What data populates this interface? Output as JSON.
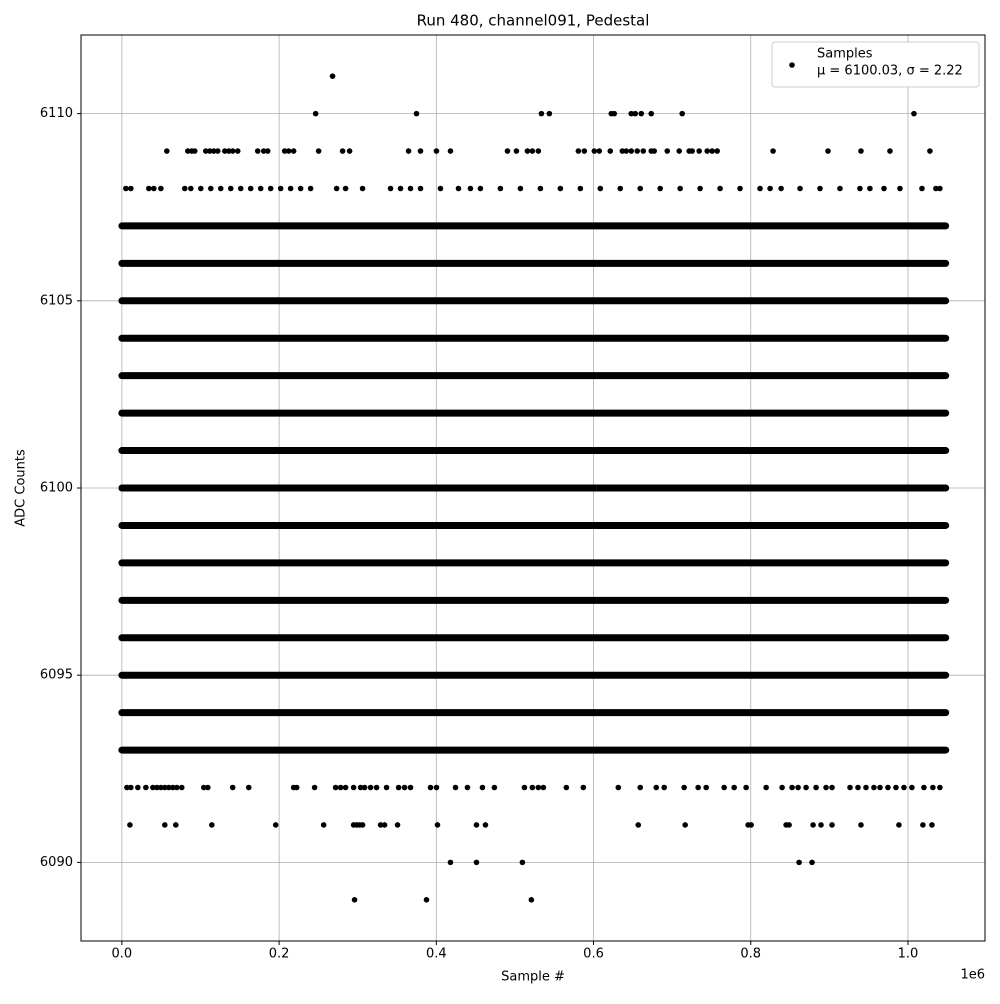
{
  "chart_data": {
    "type": "scatter",
    "title": "Run 480, channel091, Pedestal",
    "xlabel": "Sample #",
    "ylabel": "ADC Counts",
    "x_offset_label": "1e6",
    "legend": [
      "Samples",
      "μ = 6100.03, σ = 2.22"
    ],
    "color": "#000000",
    "grid": true,
    "legend_loc": "upper right",
    "xlim": [
      -52000,
      1098000
    ],
    "ylim": [
      6087.9,
      6112.1
    ],
    "xticks": [
      {
        "value": 0,
        "label": "0.0"
      },
      {
        "value": 200000,
        "label": "0.2"
      },
      {
        "value": 400000,
        "label": "0.4"
      },
      {
        "value": 600000,
        "label": "0.6"
      },
      {
        "value": 800000,
        "label": "0.8"
      },
      {
        "value": 1000000,
        "label": "1.0"
      }
    ],
    "yticks": [
      6090,
      6095,
      6100,
      6105,
      6110
    ],
    "band_levels": [
      6093,
      6094,
      6095,
      6096,
      6097,
      6098,
      6099,
      6100,
      6101,
      6102,
      6103,
      6104,
      6105,
      6106,
      6107
    ],
    "band_xlim": [
      0,
      1048000
    ],
    "points": [
      {
        "y": 6111,
        "x": [
          268000
        ]
      },
      {
        "y": 6110,
        "x": [
          246500,
          374800,
          533700,
          543800,
          622600,
          626400,
          648000,
          653100,
          660700,
          673400,
          712800,
          1007600
        ]
      },
      {
        "y": 6109,
        "x": [
          57200,
          83900,
          88900,
          92700,
          106700,
          111800,
          116900,
          122000,
          130900,
          136000,
          141000,
          147400,
          172800,
          180400,
          185500,
          207100,
          212200,
          218500,
          250300,
          280800,
          289700,
          364700,
          379900,
          400200,
          418000,
          490500,
          501900,
          515900,
          522200,
          529800,
          580700,
          588300,
          601000,
          607300,
          621300,
          636600,
          641600,
          648000,
          655600,
          663300,
          673400,
          677200,
          693800,
          709000,
          721700,
          725500,
          734400,
          744600,
          750900,
          757300,
          828400,
          898300,
          940200,
          977100,
          1027900
        ]
      },
      {
        "y": 6108,
        "x": [
          5100,
          11400,
          34300,
          40700,
          49600,
          80000,
          87700,
          100400,
          113100,
          125800,
          138500,
          151200,
          163900,
          176600,
          189300,
          202000,
          214700,
          227400,
          240100,
          273200,
          284600,
          306200,
          341800,
          354500,
          367200,
          379900,
          405300,
          428200,
          443400,
          456100,
          481500,
          507000,
          532400,
          557800,
          583200,
          608600,
          634000,
          659400,
          684800,
          710200,
          735600,
          761000,
          786400,
          811800,
          824600,
          838600,
          862700,
          888100,
          913500,
          938900,
          951600,
          969500,
          989800,
          1017800,
          1035500,
          1040600
        ]
      },
      {
        "y": 6092,
        "x": [
          6400,
          11400,
          20300,
          30500,
          39400,
          44500,
          49600,
          54600,
          59700,
          64800,
          69900,
          76200,
          104200,
          109300,
          141000,
          161400,
          218500,
          222400,
          245200,
          271900,
          278300,
          284600,
          294800,
          303700,
          308800,
          316400,
          324000,
          336700,
          352000,
          359600,
          367200,
          392600,
          400200,
          424400,
          439600,
          458700,
          473900,
          512100,
          522200,
          529800,
          536200,
          565400,
          587000,
          631500,
          659400,
          679800,
          689900,
          715300,
          733100,
          743300,
          766200,
          778900,
          794100,
          819600,
          839900,
          852600,
          860200,
          870400,
          883100,
          895800,
          903400,
          926300,
          936400,
          946600,
          956700,
          964400,
          974500,
          984700,
          994900,
          1005000,
          1020300,
          1031700,
          1040600
        ]
      },
      {
        "y": 6091,
        "x": [
          10200,
          54600,
          68600,
          114400,
          195700,
          256700,
          294800,
          298600,
          302400,
          306200,
          329100,
          334200,
          350700,
          401500,
          451100,
          462500,
          656900,
          716600,
          796700,
          800500,
          845000,
          848800,
          879300,
          889400,
          903400,
          940200,
          988500,
          1019000,
          1030500
        ]
      },
      {
        "y": 6090,
        "x": [
          418000,
          451100,
          509500,
          861500,
          878000
        ]
      },
      {
        "y": 6089,
        "x": [
          296000,
          387500,
          520900
        ]
      }
    ]
  }
}
